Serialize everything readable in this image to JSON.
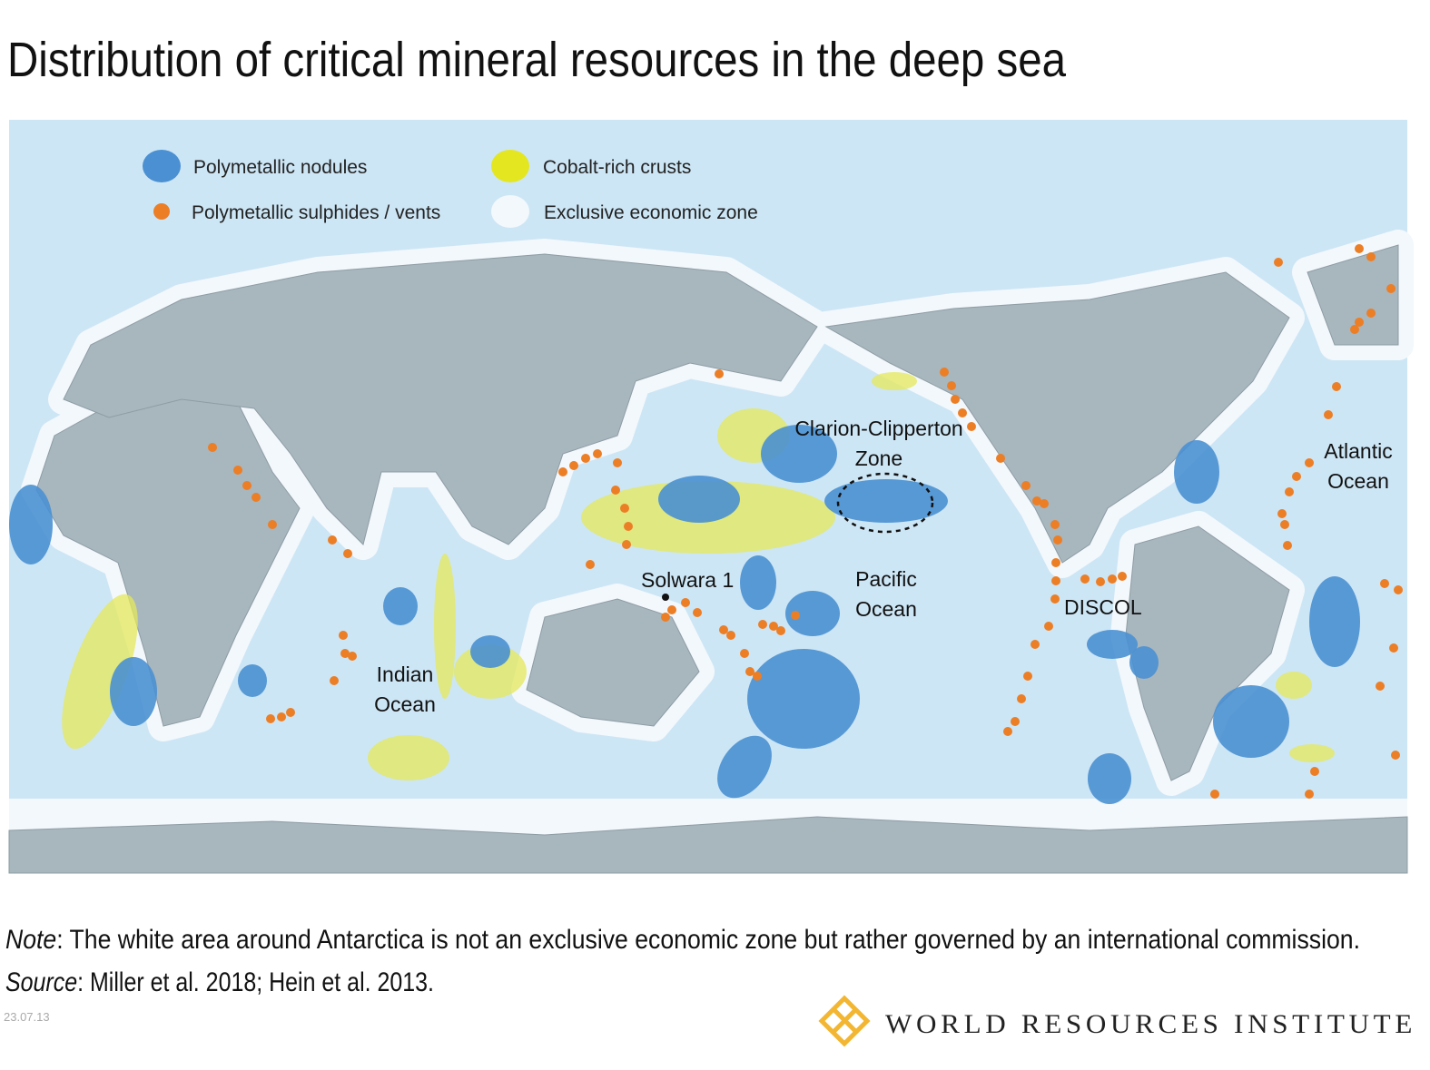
{
  "title": "Distribution of critical mineral resources in the deep sea",
  "legend": [
    {
      "label": "Polymetallic nodules"
    },
    {
      "label": "Cobalt-rich crusts"
    },
    {
      "label": "Polymetallic sulphides / vents"
    },
    {
      "label": "Exclusive economic zone"
    }
  ],
  "map_labels": [
    {
      "lines": [
        "Clarion-Clipperton",
        "Zone"
      ]
    },
    {
      "lines": [
        "Atlantic",
        "Ocean"
      ]
    },
    {
      "lines": [
        "Pacific",
        "Ocean"
      ]
    },
    {
      "lines": [
        "Indian",
        "Ocean"
      ]
    },
    {
      "lines": [
        "Solwara 1"
      ]
    },
    {
      "lines": [
        "DISCOL"
      ]
    }
  ],
  "note": {
    "label": "Note",
    "text": ": The white area around Antarctica is not an exclusive economic zone but rather governed by an international commission."
  },
  "source": {
    "label": "Source",
    "text": ": Miller et al. 2018; Hein et al. 2013."
  },
  "date": "23.07.13",
  "logo": "WORLD RESOURCES INSTITUTE"
}
